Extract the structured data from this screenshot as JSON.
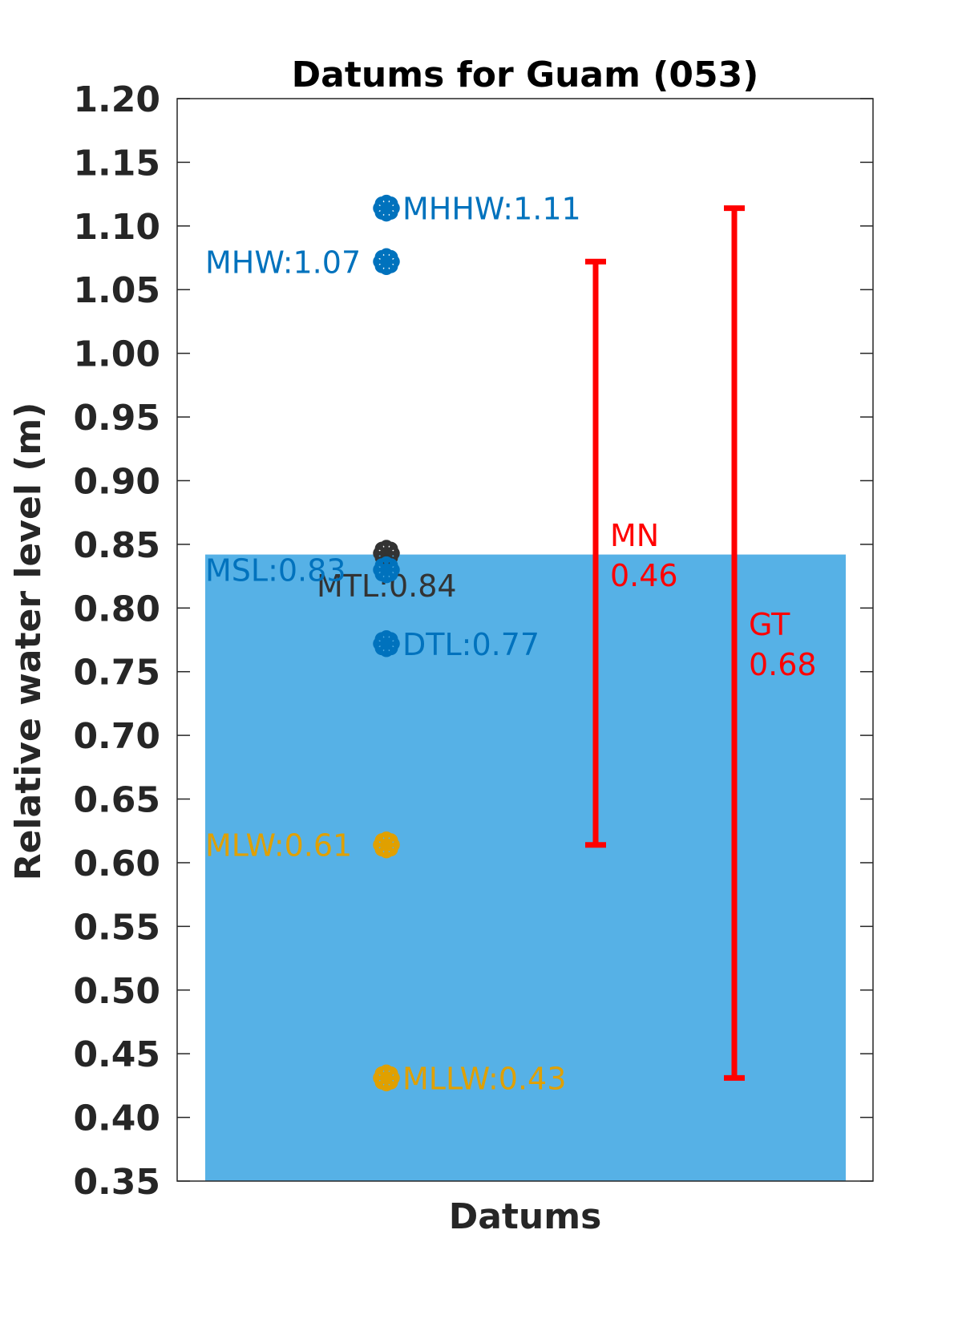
{
  "chart_data": {
    "type": "scatter",
    "title": "Datums for Guam (053)",
    "xlabel": "Datums",
    "ylabel": "Relative water level (m)",
    "ylim": [
      0.35,
      1.2
    ],
    "yticks": [
      "0.35",
      "0.40",
      "0.45",
      "0.50",
      "0.55",
      "0.60",
      "0.65",
      "0.70",
      "0.75",
      "0.80",
      "0.85",
      "0.90",
      "0.95",
      "1.00",
      "1.05",
      "1.10",
      "1.15",
      "1.20"
    ],
    "grid": false,
    "background_fill": {
      "from": 0.35,
      "to": 0.842,
      "color": "#56b1e6"
    },
    "points": [
      {
        "name": "MHHW",
        "label": "MHHW:1.11",
        "value": 1.114,
        "color": "#0072bd",
        "label_side": "right"
      },
      {
        "name": "MHW",
        "label": "MHW:1.07",
        "value": 1.072,
        "color": "#0072bd",
        "label_side": "left"
      },
      {
        "name": "MTL",
        "label": "MTL:0.84",
        "value": 0.843,
        "color": "#333333",
        "label_side": "below"
      },
      {
        "name": "MSL",
        "label": "MSL:0.83",
        "value": 0.83,
        "color": "#0072bd",
        "label_side": "left"
      },
      {
        "name": "DTL",
        "label": "DTL:0.77",
        "value": 0.772,
        "color": "#0072bd",
        "label_side": "right"
      },
      {
        "name": "MLW",
        "label": "MLW:0.61",
        "value": 0.614,
        "color": "#e0a000",
        "label_side": "left"
      },
      {
        "name": "MLLW",
        "label": "MLLW:0.43",
        "value": 0.431,
        "color": "#e0a000",
        "label_side": "right"
      }
    ],
    "ranges": [
      {
        "name": "MN",
        "label_name": "MN",
        "label_value": "0.46",
        "low": 0.614,
        "high": 1.072,
        "color": "#ff0000"
      },
      {
        "name": "GT",
        "label_name": "GT",
        "label_value": "0.68",
        "low": 0.431,
        "high": 1.114,
        "color": "#ff0000"
      }
    ]
  }
}
